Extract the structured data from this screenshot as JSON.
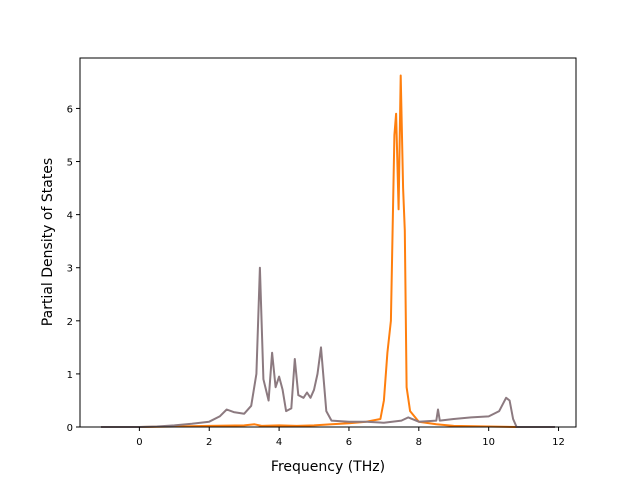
{
  "chart_data": {
    "type": "line",
    "title": "",
    "xlabel": "Frequency (THz)",
    "ylabel": "Partial Density of States",
    "xlim": [
      -1.7,
      12.5
    ],
    "ylim": [
      0,
      6.95
    ],
    "xticks": [
      0,
      2,
      4,
      6,
      8,
      10,
      12
    ],
    "yticks": [
      0,
      1,
      2,
      3,
      4,
      5,
      6
    ],
    "grid": false,
    "legend": "none",
    "series": [
      {
        "color": "#ff7f0e",
        "points": [
          [
            -1.1,
            0
          ],
          [
            0,
            0
          ],
          [
            1,
            0.01
          ],
          [
            2,
            0.02
          ],
          [
            3,
            0.03
          ],
          [
            3.3,
            0.05
          ],
          [
            3.5,
            0.02
          ],
          [
            4,
            0.03
          ],
          [
            4.5,
            0.02
          ],
          [
            5,
            0.03
          ],
          [
            5.5,
            0.05
          ],
          [
            6,
            0.07
          ],
          [
            6.5,
            0.1
          ],
          [
            6.9,
            0.15
          ],
          [
            7.0,
            0.5
          ],
          [
            7.1,
            1.4
          ],
          [
            7.2,
            2.0
          ],
          [
            7.3,
            5.5
          ],
          [
            7.35,
            5.9
          ],
          [
            7.42,
            4.1
          ],
          [
            7.48,
            6.62
          ],
          [
            7.55,
            4.5
          ],
          [
            7.6,
            3.7
          ],
          [
            7.65,
            0.75
          ],
          [
            7.75,
            0.3
          ],
          [
            8,
            0.1
          ],
          [
            8.5,
            0.05
          ],
          [
            9,
            0.02
          ],
          [
            10,
            0.01
          ],
          [
            10.8,
            0
          ],
          [
            11.9,
            0
          ]
        ]
      },
      {
        "color": "#8c7a80",
        "points": [
          [
            -1.1,
            0
          ],
          [
            0,
            0
          ],
          [
            0.5,
            0.01
          ],
          [
            1,
            0.03
          ],
          [
            1.5,
            0.06
          ],
          [
            2,
            0.1
          ],
          [
            2.3,
            0.2
          ],
          [
            2.5,
            0.33
          ],
          [
            2.7,
            0.28
          ],
          [
            3,
            0.25
          ],
          [
            3.2,
            0.4
          ],
          [
            3.35,
            1.0
          ],
          [
            3.45,
            3.0
          ],
          [
            3.55,
            0.9
          ],
          [
            3.7,
            0.5
          ],
          [
            3.8,
            1.4
          ],
          [
            3.9,
            0.75
          ],
          [
            4.0,
            0.95
          ],
          [
            4.1,
            0.7
          ],
          [
            4.2,
            0.3
          ],
          [
            4.35,
            0.35
          ],
          [
            4.45,
            1.28
          ],
          [
            4.55,
            0.6
          ],
          [
            4.7,
            0.55
          ],
          [
            4.8,
            0.65
          ],
          [
            4.9,
            0.55
          ],
          [
            5.0,
            0.7
          ],
          [
            5.1,
            1.0
          ],
          [
            5.2,
            1.5
          ],
          [
            5.35,
            0.3
          ],
          [
            5.5,
            0.12
          ],
          [
            6,
            0.1
          ],
          [
            6.5,
            0.1
          ],
          [
            7,
            0.08
          ],
          [
            7.5,
            0.12
          ],
          [
            7.7,
            0.18
          ],
          [
            8,
            0.1
          ],
          [
            8.5,
            0.12
          ],
          [
            8.55,
            0.33
          ],
          [
            8.6,
            0.12
          ],
          [
            9,
            0.15
          ],
          [
            9.5,
            0.18
          ],
          [
            10,
            0.2
          ],
          [
            10.3,
            0.3
          ],
          [
            10.5,
            0.55
          ],
          [
            10.6,
            0.5
          ],
          [
            10.7,
            0.15
          ],
          [
            10.8,
            0
          ],
          [
            11.9,
            0
          ]
        ]
      }
    ]
  }
}
